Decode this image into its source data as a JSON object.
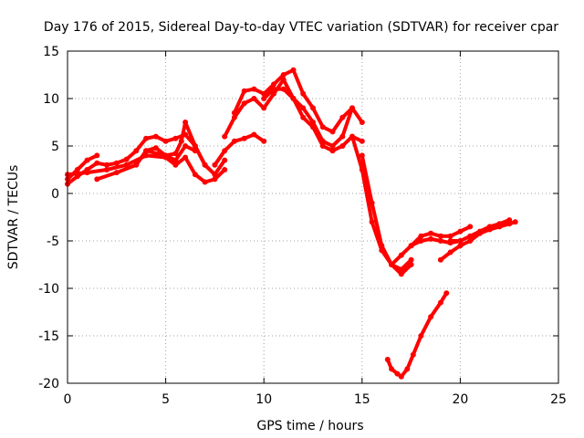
{
  "chart_data": {
    "type": "line",
    "title": "Day 176 of 2015, Sidereal Day-to-day VTEC variation (SDTVAR) for receiver cpar",
    "xlabel": "GPS time / hours",
    "ylabel": "SDTVAR / TECUs",
    "xlim": [
      0,
      25
    ],
    "ylim": [
      -20,
      15
    ],
    "xticks": [
      0,
      5,
      10,
      15,
      20,
      25
    ],
    "yticks": [
      -20,
      -15,
      -10,
      -5,
      0,
      5,
      10,
      15
    ],
    "grid": true,
    "legend": "none",
    "color": "#ff0000",
    "series": [
      {
        "x": [
          0.0,
          0.5,
          1.0,
          1.5,
          2.0,
          2.5,
          3.0,
          3.5,
          4.0,
          4.5,
          5.0,
          5.5,
          6.0,
          6.5,
          7.0,
          7.5,
          8.0
        ],
        "y": [
          1.0,
          1.8,
          2.5,
          3.2,
          3.0,
          3.2,
          3.6,
          4.5,
          5.8,
          6.0,
          5.5,
          5.8,
          6.2,
          5.0,
          3.0,
          2.0,
          3.5
        ]
      },
      {
        "x": [
          0.0,
          1.0,
          2.0,
          3.0,
          4.0,
          5.0,
          5.5,
          6.0,
          6.5,
          7.0,
          7.5,
          8.0
        ],
        "y": [
          2.0,
          2.2,
          2.5,
          3.0,
          4.0,
          3.8,
          3.0,
          3.8,
          2.0,
          1.2,
          1.5,
          2.5
        ]
      },
      {
        "x": [
          0.0,
          0.5,
          1.0,
          1.5
        ],
        "y": [
          1.5,
          2.5,
          3.5,
          4.0
        ]
      },
      {
        "x": [
          1.5,
          2.5,
          3.5,
          4.0,
          4.5,
          5.0,
          5.5,
          6.0,
          6.5
        ],
        "y": [
          1.5,
          2.2,
          3.0,
          4.5,
          4.8,
          4.0,
          3.5,
          5.0,
          4.5
        ]
      },
      {
        "x": [
          4.0,
          5.0,
          5.5,
          5.8,
          6.0,
          6.5,
          7.0,
          7.5
        ],
        "y": [
          4.5,
          4.0,
          4.2,
          5.5,
          7.5,
          5.0,
          3.0,
          2.0
        ]
      },
      {
        "x": [
          7.5,
          8.0,
          8.5,
          9.0,
          9.5,
          10.0
        ],
        "y": [
          3.0,
          4.5,
          5.5,
          5.8,
          6.2,
          5.5
        ]
      },
      {
        "x": [
          8.0,
          8.5,
          9.0,
          9.5,
          10.0,
          10.5,
          11.0,
          11.5,
          12.0,
          12.5,
          13.0,
          13.5,
          14.0,
          14.5,
          15.0
        ],
        "y": [
          6.0,
          8.0,
          9.5,
          10.0,
          9.0,
          10.5,
          12.0,
          10.0,
          8.0,
          7.0,
          5.0,
          4.5,
          5.0,
          6.0,
          5.5
        ]
      },
      {
        "x": [
          8.5,
          9.0,
          9.5,
          10.0,
          10.5,
          11.0,
          11.5,
          12.0,
          12.5,
          13.0,
          13.5,
          14.0,
          14.5,
          15.0
        ],
        "y": [
          8.5,
          10.8,
          11.0,
          10.5,
          11.5,
          12.5,
          13.0,
          10.5,
          9.0,
          7.0,
          6.5,
          8.0,
          9.0,
          7.5
        ]
      },
      {
        "x": [
          10.0,
          10.5,
          11.0,
          11.5,
          12.0,
          12.5,
          13.0,
          13.5,
          14.0,
          14.5
        ],
        "y": [
          10.0,
          11.0,
          11.0,
          10.0,
          9.0,
          7.5,
          5.5,
          5.0,
          6.0,
          9.0
        ]
      },
      {
        "x": [
          15.0,
          15.5,
          16.0,
          16.5,
          17.0,
          17.5
        ],
        "y": [
          4.0,
          -1.0,
          -5.5,
          -7.5,
          -8.5,
          -7.5
        ]
      },
      {
        "x": [
          14.5,
          15.0,
          15.5,
          16.0,
          16.5,
          17.0,
          17.5
        ],
        "y": [
          6.0,
          2.5,
          -3.0,
          -6.0,
          -7.5,
          -8.0,
          -7.0
        ]
      },
      {
        "x": [
          16.5,
          17.0,
          17.5,
          18.0,
          18.5,
          19.0,
          19.5,
          20.0,
          20.5
        ],
        "y": [
          -7.5,
          -6.5,
          -5.5,
          -4.5,
          -4.2,
          -4.5,
          -4.5,
          -4.0,
          -3.5
        ]
      },
      {
        "x": [
          17.5,
          18.0,
          18.5,
          19.0,
          19.5,
          20.0
        ],
        "y": [
          -5.5,
          -5.0,
          -4.8,
          -5.0,
          -5.2,
          -5.0
        ]
      },
      {
        "x": [
          19.0,
          19.5,
          20.0,
          20.5,
          21.0,
          21.5,
          22.0,
          22.5,
          22.8
        ],
        "y": [
          -7.0,
          -6.2,
          -5.5,
          -5.0,
          -4.2,
          -3.8,
          -3.5,
          -3.2,
          -3.0
        ]
      },
      {
        "x": [
          19.5,
          20.0,
          20.5,
          21.0,
          21.5,
          22.0,
          22.5
        ],
        "y": [
          -5.0,
          -5.0,
          -4.5,
          -4.0,
          -3.5,
          -3.2,
          -2.8
        ]
      },
      {
        "x": [
          16.3,
          16.5,
          16.8,
          17.0,
          17.3,
          17.6,
          18.0,
          18.5,
          19.0,
          19.3
        ],
        "y": [
          -17.5,
          -18.5,
          -19.0,
          -19.3,
          -18.5,
          -17.0,
          -15.0,
          -13.0,
          -11.5,
          -10.5
        ]
      }
    ]
  }
}
